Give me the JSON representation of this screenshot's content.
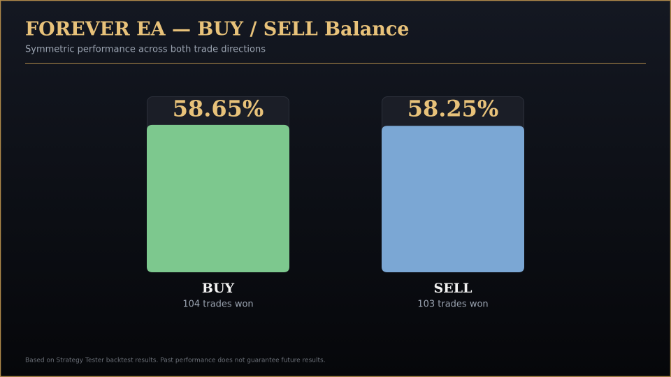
{
  "chart_data": {
    "type": "bar",
    "title": "FOREVER EA — BUY / SELL Balance",
    "subtitle": "Symmetric performance across both trade directions",
    "categories": [
      "BUY",
      "SELL"
    ],
    "values": [
      58.65,
      58.25
    ],
    "value_labels": [
      "58.65%",
      "58.25%"
    ],
    "sublabels": [
      "104 trades won",
      "103 trades won"
    ],
    "colors": [
      "#7dc88e",
      "#7ba7d4"
    ],
    "ylim": [
      0,
      70
    ],
    "footnote": "Based on Strategy Tester backtest results. Past performance does not guarantee future results."
  }
}
